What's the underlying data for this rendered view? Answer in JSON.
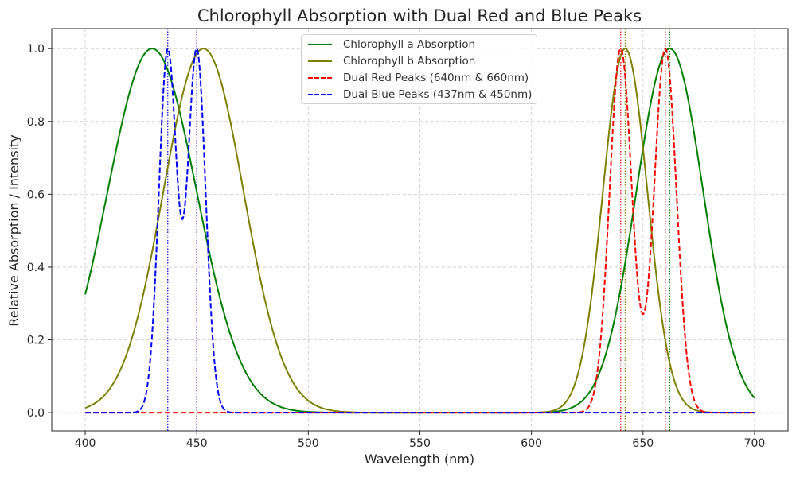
{
  "chart_data": {
    "type": "line",
    "title": "Chlorophyll Absorption with Dual Red and Blue Peaks",
    "xlabel": "Wavelength (nm)",
    "ylabel": "Relative Absorption / Intensity",
    "xlim": [
      385,
      715
    ],
    "ylim": [
      -0.05,
      1.055
    ],
    "x_range": [
      400,
      700
    ],
    "xticks": [
      400,
      450,
      500,
      550,
      600,
      650,
      700
    ],
    "yticks": [
      0.0,
      0.2,
      0.4,
      0.6,
      0.8,
      1.0
    ],
    "grid": true,
    "legend_position": "top-center",
    "series": [
      {
        "name": "Chlorophyll a Absorption",
        "color": "#008000",
        "style": "solid",
        "combine": "max",
        "components": [
          {
            "center": 430,
            "sigma": 20
          },
          {
            "center": 662,
            "sigma": 15
          }
        ]
      },
      {
        "name": "Chlorophyll b Absorption",
        "color": "#808000",
        "style": "solid",
        "combine": "max",
        "components": [
          {
            "center": 453,
            "sigma": 18
          },
          {
            "center": 642,
            "sigma": 10
          }
        ]
      },
      {
        "name": "Dual Red Peaks (640nm & 660nm)",
        "color": "#ff0000",
        "style": "dashed",
        "combine": "sum",
        "components": [
          {
            "center": 640,
            "sigma": 5
          },
          {
            "center": 660,
            "sigma": 5
          }
        ]
      },
      {
        "name": "Dual Blue Peaks (437nm & 450nm)",
        "color": "#0000ff",
        "style": "dashed",
        "combine": "sum",
        "components": [
          {
            "center": 437,
            "sigma": 4
          },
          {
            "center": 450,
            "sigma": 4
          }
        ]
      }
    ],
    "vlines": [
      {
        "x": 437,
        "color": "#0000ff"
      },
      {
        "x": 450,
        "color": "#0000ff"
      },
      {
        "x": 640,
        "color": "#ff0000"
      },
      {
        "x": 660,
        "color": "#ff0000"
      },
      {
        "x": 642,
        "color": "#808000"
      },
      {
        "x": 662,
        "color": "#008000"
      }
    ]
  }
}
